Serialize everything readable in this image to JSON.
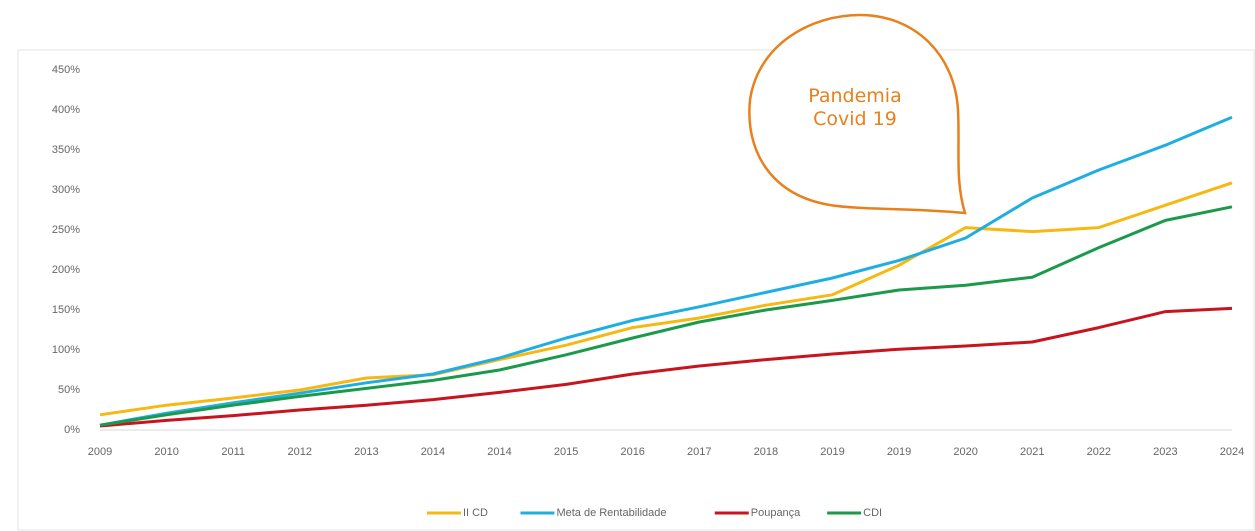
{
  "chart_data": {
    "type": "line",
    "annotation": "Pandemia Covid 19",
    "categories": [
      "2009",
      "2010",
      "2011",
      "2012",
      "2013",
      "2014",
      "2014",
      "2015",
      "2016",
      "2017",
      "2018",
      "2019",
      "2019",
      "2020",
      "2021",
      "2022",
      "2023",
      "2024"
    ],
    "series": [
      {
        "name": "II CD",
        "color": "#f5b912",
        "values": [
          19,
          31,
          40,
          50,
          65,
          69,
          88,
          106,
          128,
          140,
          156,
          169,
          206,
          253,
          248,
          253,
          281,
          309
        ]
      },
      {
        "name": "Meta de Rentabilidade",
        "color": "#1eaee3",
        "values": [
          6,
          21,
          34,
          46,
          59,
          70,
          90,
          115,
          137,
          154,
          172,
          190,
          212,
          240,
          290,
          325,
          356,
          391
        ]
      },
      {
        "name": "Poupança",
        "color": "#c8141e",
        "values": [
          5,
          12,
          18,
          25,
          31,
          38,
          47,
          57,
          70,
          80,
          88,
          95,
          101,
          105,
          110,
          128,
          148,
          152
        ]
      },
      {
        "name": "CDI",
        "color": "#1a9a4a",
        "values": [
          6,
          19,
          31,
          42,
          52,
          62,
          75,
          94,
          115,
          135,
          150,
          162,
          175,
          181,
          191,
          228,
          262,
          279
        ]
      }
    ],
    "ylim": [
      0,
      450
    ],
    "yticks": [
      {
        "value": 0,
        "label": "0%"
      },
      {
        "value": 50,
        "label": "50%"
      },
      {
        "value": 100,
        "label": "100%"
      },
      {
        "value": 150,
        "label": "150%"
      },
      {
        "value": 200,
        "label": "200%"
      },
      {
        "value": 250,
        "label": "250%"
      },
      {
        "value": 300,
        "label": "300%"
      },
      {
        "value": 350,
        "label": "350%"
      },
      {
        "value": 400,
        "label": "400%"
      },
      {
        "value": 450,
        "label": "450%"
      }
    ],
    "legend": "bottom"
  }
}
